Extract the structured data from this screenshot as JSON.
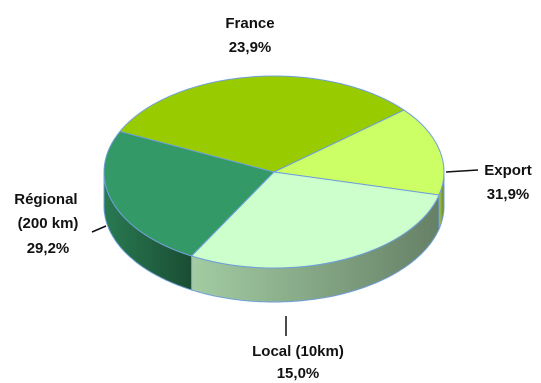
{
  "chart_data": {
    "type": "pie",
    "title": "",
    "slices": [
      {
        "label": "France",
        "value_label": "23,9%",
        "value": 23.9,
        "color": "#339966"
      },
      {
        "label": "Export",
        "value_label": "31,9%",
        "value": 31.9,
        "color": "#99cc00"
      },
      {
        "label": "Local (10km)",
        "value_label": "15,0%",
        "value": 15.0,
        "color": "#ccff66"
      },
      {
        "label": "Régional (200 km)",
        "value_label": "29,2%",
        "value": 29.2,
        "color": "#ccffcc"
      }
    ],
    "style": "3d"
  }
}
